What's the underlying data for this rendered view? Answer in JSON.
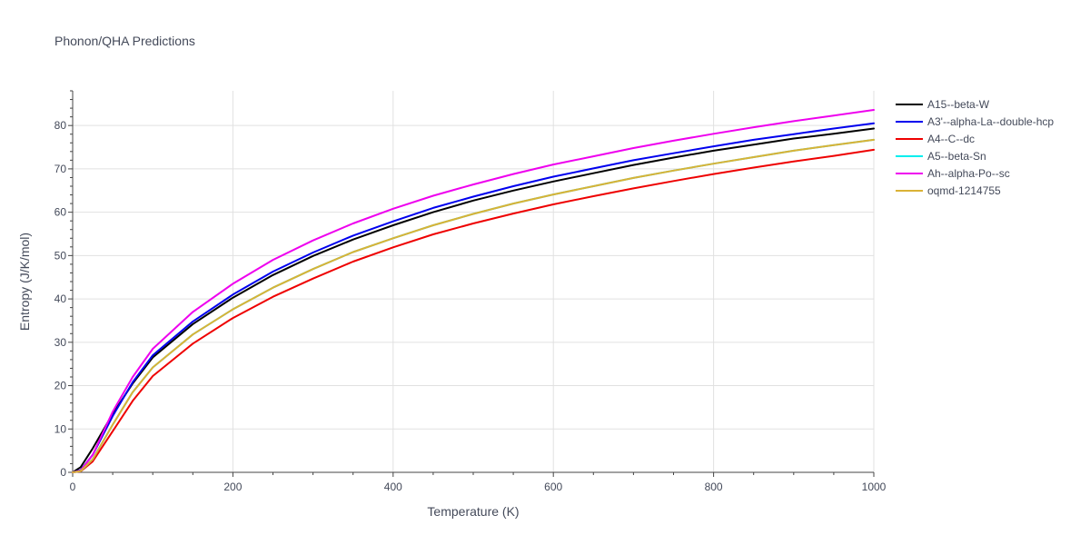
{
  "chart_data": {
    "type": "line",
    "title": "Phonon/QHA Predictions",
    "xlabel": "Temperature (K)",
    "ylabel": "Entropy (J/K/mol)",
    "xlim": [
      0,
      1000
    ],
    "ylim": [
      0,
      88
    ],
    "x_ticks": [
      0,
      200,
      400,
      600,
      800,
      1000
    ],
    "y_ticks": [
      0,
      10,
      20,
      30,
      40,
      50,
      60,
      70,
      80
    ],
    "grid": true,
    "legend_position": "right",
    "x": [
      0,
      10,
      25,
      50,
      75,
      100,
      150,
      200,
      250,
      300,
      350,
      400,
      450,
      500,
      550,
      600,
      650,
      700,
      750,
      800,
      850,
      900,
      950,
      1000
    ],
    "series": [
      {
        "name": "A15--beta-W",
        "color": "#000000",
        "values": [
          0,
          1.2,
          5.5,
          13.5,
          20.5,
          26.5,
          34.2,
          40.3,
          45.5,
          49.9,
          53.7,
          57.0,
          60.0,
          62.7,
          65.0,
          67.1,
          69.0,
          70.9,
          72.6,
          74.2,
          75.6,
          77.0,
          78.1,
          79.3
        ]
      },
      {
        "name": "A3'--alpha-La--double-hcp",
        "color": "#0000ee",
        "values": [
          0,
          0.5,
          4.0,
          13.0,
          20.8,
          27.0,
          34.8,
          41.0,
          46.3,
          50.7,
          54.6,
          57.9,
          61.0,
          63.6,
          66.0,
          68.2,
          70.1,
          72.0,
          73.6,
          75.2,
          76.7,
          78.0,
          79.3,
          80.5
        ]
      },
      {
        "name": "A4--C--dc",
        "color": "#ee0000",
        "values": [
          0,
          0.2,
          2.5,
          9.5,
          16.5,
          22.2,
          29.7,
          35.6,
          40.5,
          44.7,
          48.6,
          51.9,
          54.9,
          57.4,
          59.7,
          61.8,
          63.7,
          65.5,
          67.2,
          68.8,
          70.3,
          71.7,
          73.0,
          74.4
        ]
      },
      {
        "name": "A5--beta-Sn",
        "color": "#00eeee",
        "values": [
          0,
          0.3,
          3.0,
          11.0,
          18.5,
          24.2,
          31.8,
          37.6,
          42.6,
          46.9,
          50.8,
          54.0,
          57.0,
          59.6,
          62.0,
          64.1,
          66.0,
          67.9,
          69.6,
          71.2,
          72.7,
          74.2,
          75.5,
          76.7
        ]
      },
      {
        "name": "Ah--alpha-Po--sc",
        "color": "#ee00ee",
        "values": [
          0,
          0.4,
          4.0,
          14.0,
          22.0,
          28.5,
          37.0,
          43.5,
          49.0,
          53.5,
          57.4,
          60.8,
          63.8,
          66.4,
          68.8,
          71.0,
          72.9,
          74.8,
          76.5,
          78.1,
          79.6,
          81.0,
          82.3,
          83.6
        ]
      },
      {
        "name": "oqmd-1214755",
        "color": "#dab236",
        "values": [
          0,
          0.3,
          3.0,
          11.0,
          18.5,
          24.2,
          31.8,
          37.6,
          42.6,
          46.9,
          50.8,
          54.0,
          57.0,
          59.6,
          62.0,
          64.1,
          66.0,
          67.9,
          69.6,
          71.2,
          72.7,
          74.2,
          75.5,
          76.7
        ]
      }
    ]
  }
}
